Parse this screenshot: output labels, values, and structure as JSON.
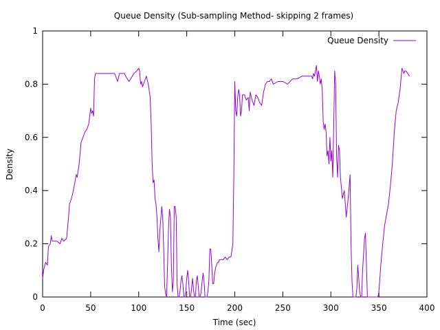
{
  "chart_data": {
    "type": "line",
    "title": "Queue Density (Sub-sampling Method- skipping 2 frames)",
    "xlabel": "Time (sec)",
    "ylabel": "Density",
    "xlim": [
      0,
      400
    ],
    "ylim": [
      0,
      1
    ],
    "xticks": [
      0,
      50,
      100,
      150,
      200,
      250,
      300,
      350,
      400
    ],
    "yticks": [
      0,
      0.2,
      0.4,
      0.6,
      0.8,
      1
    ],
    "grid": false,
    "legend_position": "top-right",
    "series": [
      {
        "name": "Queue Density",
        "color": "#9400d3",
        "x": [
          0,
          1,
          3,
          5,
          6,
          8,
          9,
          10,
          12,
          15,
          18,
          20,
          22,
          25,
          27,
          28,
          30,
          32,
          35,
          36,
          38,
          40,
          42,
          44,
          46,
          48,
          50,
          51,
          52,
          53,
          54,
          55,
          56,
          58,
          62,
          66,
          70,
          75,
          78,
          80,
          85,
          88,
          90,
          95,
          98,
          100,
          101,
          102,
          103,
          104,
          105,
          106,
          108,
          110,
          112,
          113,
          114,
          115,
          116,
          117,
          118,
          119,
          120,
          121,
          122,
          124,
          125,
          126,
          127,
          128,
          129,
          130,
          131,
          132,
          133,
          134,
          135,
          136,
          137,
          138,
          139,
          140,
          141,
          142,
          143,
          144,
          145,
          146,
          147,
          148,
          149,
          150,
          151,
          152,
          153,
          154,
          155,
          156,
          157,
          158,
          159,
          160,
          161,
          162,
          163,
          164,
          165,
          166,
          167,
          168,
          169,
          170,
          171,
          172,
          173,
          174,
          175,
          176,
          177,
          178,
          179,
          180,
          181,
          182,
          183,
          184,
          186,
          188,
          190,
          192,
          194,
          196,
          198,
          199,
          200,
          201,
          202,
          203,
          204,
          205,
          206,
          207,
          208,
          210,
          212,
          214,
          215,
          216,
          218,
          220,
          222,
          224,
          226,
          228,
          230,
          232,
          234,
          236,
          238,
          240,
          245,
          250,
          255,
          260,
          265,
          270,
          275,
          278,
          280,
          281,
          282,
          283,
          284,
          285,
          286,
          287,
          288,
          289,
          290,
          291,
          292,
          293,
          294,
          295,
          296,
          297,
          298,
          299,
          300,
          301,
          302,
          303,
          304,
          305,
          306,
          307,
          308,
          309,
          310,
          312,
          314,
          316,
          318,
          320,
          321,
          322,
          323,
          324,
          325,
          326,
          327,
          328,
          329,
          330,
          331,
          332,
          333,
          334,
          335,
          336,
          337,
          338,
          339,
          340,
          341,
          342,
          343,
          344,
          345,
          346,
          347,
          348,
          349,
          350,
          352,
          354,
          356,
          358,
          360,
          362,
          364,
          366,
          368,
          370,
          372,
          374,
          376,
          377,
          378,
          380,
          382
        ],
        "y": [
          0.07,
          0.1,
          0.13,
          0.12,
          0.19,
          0.2,
          0.23,
          0.21,
          0.21,
          0.21,
          0.2,
          0.22,
          0.21,
          0.22,
          0.3,
          0.35,
          0.37,
          0.4,
          0.46,
          0.45,
          0.5,
          0.58,
          0.6,
          0.62,
          0.63,
          0.65,
          0.71,
          0.69,
          0.7,
          0.68,
          0.82,
          0.84,
          0.84,
          0.84,
          0.84,
          0.84,
          0.84,
          0.84,
          0.81,
          0.84,
          0.84,
          0.82,
          0.81,
          0.84,
          0.85,
          0.86,
          0.85,
          0.8,
          0.81,
          0.79,
          0.8,
          0.81,
          0.83,
          0.8,
          0.75,
          0.65,
          0.5,
          0.43,
          0.44,
          0.37,
          0.35,
          0.3,
          0.22,
          0.17,
          0.25,
          0.34,
          0.3,
          0.18,
          0.04,
          0.01,
          0.0,
          0.12,
          0.26,
          0.33,
          0.3,
          0.12,
          0.02,
          0.06,
          0.34,
          0.34,
          0.3,
          0.05,
          0.0,
          0.0,
          0.02,
          0.06,
          0.08,
          0.05,
          0.0,
          0.0,
          0.02,
          0.07,
          0.1,
          0.06,
          0.0,
          0.0,
          0.03,
          0.07,
          0.03,
          0.0,
          0.0,
          0.06,
          0.08,
          0.04,
          0.0,
          0.0,
          0.02,
          0.06,
          0.09,
          0.06,
          0.0,
          0.0,
          0.0,
          0.02,
          0.06,
          0.18,
          0.18,
          0.12,
          0.05,
          0.05,
          0.09,
          0.11,
          0.12,
          0.13,
          0.13,
          0.14,
          0.14,
          0.14,
          0.15,
          0.14,
          0.15,
          0.15,
          0.2,
          0.45,
          0.81,
          0.7,
          0.68,
          0.75,
          0.78,
          0.76,
          0.68,
          0.7,
          0.76,
          0.76,
          0.74,
          0.75,
          0.7,
          0.77,
          0.74,
          0.72,
          0.76,
          0.75,
          0.73,
          0.72,
          0.77,
          0.8,
          0.81,
          0.81,
          0.82,
          0.8,
          0.81,
          0.81,
          0.8,
          0.82,
          0.82,
          0.83,
          0.83,
          0.83,
          0.83,
          0.82,
          0.84,
          0.83,
          0.85,
          0.87,
          0.81,
          0.85,
          0.83,
          0.8,
          0.82,
          0.78,
          0.66,
          0.63,
          0.65,
          0.62,
          0.53,
          0.55,
          0.5,
          0.6,
          0.51,
          0.55,
          0.45,
          0.64,
          0.85,
          0.8,
          0.53,
          0.45,
          0.57,
          0.55,
          0.45,
          0.37,
          0.4,
          0.3,
          0.37,
          0.46,
          0.2,
          0.06,
          0.0,
          0.0,
          0.0,
          0.0,
          0.03,
          0.12,
          0.07,
          0.02,
          0.0,
          0.0,
          0.1,
          0.16,
          0.22,
          0.24,
          0.12,
          0.0,
          0.0,
          0.0,
          0.0,
          0.0,
          0.0,
          0.0,
          0.0,
          0.0,
          0.0,
          0.0,
          0.0,
          0.02,
          0.12,
          0.2,
          0.27,
          0.31,
          0.35,
          0.42,
          0.5,
          0.62,
          0.7,
          0.73,
          0.78,
          0.86,
          0.84,
          0.85,
          0.85,
          0.84,
          0.83
        ]
      }
    ]
  }
}
